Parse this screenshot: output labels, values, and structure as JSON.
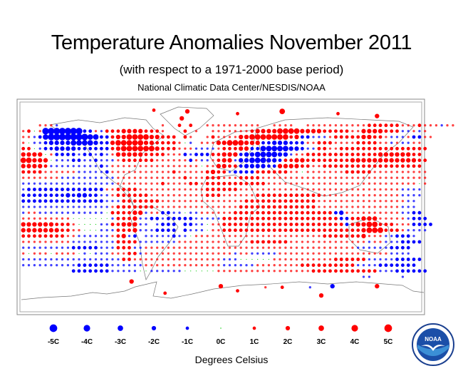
{
  "header": {
    "title": "Temperature Anomalies November 2011",
    "subtitle": "(with respect to a 1971-2000 base period)",
    "source": "National Climatic Data Center/NESDIS/NOAA"
  },
  "legend": {
    "units_label": "Degrees Celsius",
    "items": [
      {
        "label": "-5C",
        "value": -5
      },
      {
        "label": "-4C",
        "value": -4
      },
      {
        "label": "-3C",
        "value": -3
      },
      {
        "label": "-2C",
        "value": -2
      },
      {
        "label": "-1C",
        "value": -1
      },
      {
        "label": "0C",
        "value": 0
      },
      {
        "label": "1C",
        "value": 1
      },
      {
        "label": "2C",
        "value": 2
      },
      {
        "label": "3C",
        "value": 3
      },
      {
        "label": "4C",
        "value": 4
      },
      {
        "label": "5C",
        "value": 5
      }
    ],
    "colors": {
      "negative": "#0000ff",
      "zero": "#00cc00",
      "positive": "#ff0000"
    }
  },
  "logo": {
    "text": "NOAA",
    "name": "noaa-logo"
  },
  "chart_data": {
    "type": "scatter",
    "title": "Temperature Anomalies November 2011",
    "subtitle": "(with respect to a 1971-2000 base period)",
    "units": "Degrees Celsius",
    "value_range": [
      -5,
      5
    ],
    "grid_resolution_deg": 5,
    "lon_range": [
      -180,
      180
    ],
    "lat_range": [
      -90,
      90
    ],
    "encoding": "A=-5 B=-4 C=-3 D=-2 E=-1 .=0 1..5=+1..+5, space=no data",
    "row_lats": [
      70,
      65,
      60,
      55,
      50,
      45,
      40,
      35,
      30,
      25,
      20,
      15,
      10,
      5,
      0,
      -5,
      -10,
      -15,
      -20,
      -25,
      -30,
      -35,
      -40,
      -45,
      -50,
      -55,
      -60
    ],
    "rows": [
      "   111E                  1  2 2  1111111111  1111  111111111112222221112111E11   ",
      "12.1AAAAAAADD1E22233332221  .2 1  1111111233334444333322222113333222EE1E1  ",
      "11EDBAAAAAAABBDD233444433222 21  12111133444444423DDEEE12222233221EEE1DD11 ",
      "1.EEDCCCCBBBBCDD3444443322221.E 11133444333DDCCCDDD112221111222211E1EE11  ",
      "22.EDDCCCCDDDDDD234444443222111EEEE122233DDBBBBBCCDEE22112222222222222222",
      "3333.1DDDDEDDEDE1333332222111DEDDD22333DCCBBBBCCE11222222222222233333322",
      "44333.EEEDDEEDEEE1222222111111D1EE1233ECCBBBCCD22332222222233333333333322",
      "33332EEEEEEEEEDE1111111111111111.113322DCCCCDD33332211222222222222222222",
      "2222111111EEEEED111111111112111112322EDDDD22222211.1111111222221111111111",
      "1111111EEEEEEEEEE11111111111121112221112222111111111111111111111111111111",
      "EEEEEEEEEEEEEEEEE111111112111122122222222222111111111111111111111111111.1",
      "EDDDDDDDDDDDDDD11222211111111111122222211111111111111111111111111111EEEE",
      "DDDDDDDDCDCCDDEE1222222111111111122211111122222222222211111111111111EEEE",
      "DDDDDDDDDDDDDDDEEE222222211111111111111122222222222221111111111111111EE",
      "EEEEEEEEEEEEEEEE1222222211111111111111122222222222222111111111111111EEE",
      "E11EEEEEEEEEEEE.222233E11DDEE.EE111111222222222222222222DC1111111111EEDD",
      "111111111.......E2223EEDDEDDDDDEEEEE222222222222222222222DD2233311111EDDD",
      "3333332221....EE22333EE EDDD DDEE.112222222222222222222222D23344222111DDDD",
      "33333332211...EEE2223EEEDDDD DEEE.11222222222222222222222222234442221EEEE",
      "2222222211EEEEEE123ED EEEEEDEE.1111111111111111111111122222223111EEDDDE",
      "111111111EEEEEEEE2222EEEEEEE1111111111111222222211111111111111E11EEEDDDD",
      "EEEEEEEEEDDDDDEEE222EE11111111111111111111111111111111111111EEEEEEDDDD",
      "1.111.1111.E.EEE11122E1111111111111111E11EEEEE11111111111111111111EEEE",
      "EEEEEEEEEEEEEEEEEE221111111111111111EEE......11111111111222222EEEEEDDDDD",
      "EEEEEEEEEEDDDDDDEEEEEE11111111111111EEEEEE111111112222222222EEEEDDDDDDD",
      "         DDDDDDDEEEEE..EEEEEE......11111111111111111222222222222EEEDDDDDD",
      "                                                             EE     E "
    ],
    "isolated_points": [
      {
        "lon": -30,
        "lat": 82,
        "value": 3
      },
      {
        "lon": -35,
        "lat": 76,
        "value": 3
      },
      {
        "lon": 15,
        "lat": 80,
        "value": 2
      },
      {
        "lon": 55,
        "lat": 82,
        "value": 4
      },
      {
        "lon": 105,
        "lat": 80,
        "value": 2
      },
      {
        "lon": 140,
        "lat": 78,
        "value": 3
      },
      {
        "lon": -60,
        "lat": 83,
        "value": 2
      },
      {
        "lon": -80,
        "lat": -64,
        "value": 3
      },
      {
        "lon": -50,
        "lat": -74,
        "value": 2
      },
      {
        "lon": 15,
        "lat": -72,
        "value": 2
      },
      {
        "lon": 0,
        "lat": -68,
        "value": 3
      },
      {
        "lon": 40,
        "lat": -69,
        "value": 1
      },
      {
        "lon": 55,
        "lat": -69,
        "value": 2
      },
      {
        "lon": 80,
        "lat": -69,
        "value": -1
      },
      {
        "lon": 100,
        "lat": -68,
        "value": -3
      },
      {
        "lon": 90,
        "lat": -76,
        "value": 3
      },
      {
        "lon": 140,
        "lat": -68,
        "value": 3
      }
    ]
  }
}
